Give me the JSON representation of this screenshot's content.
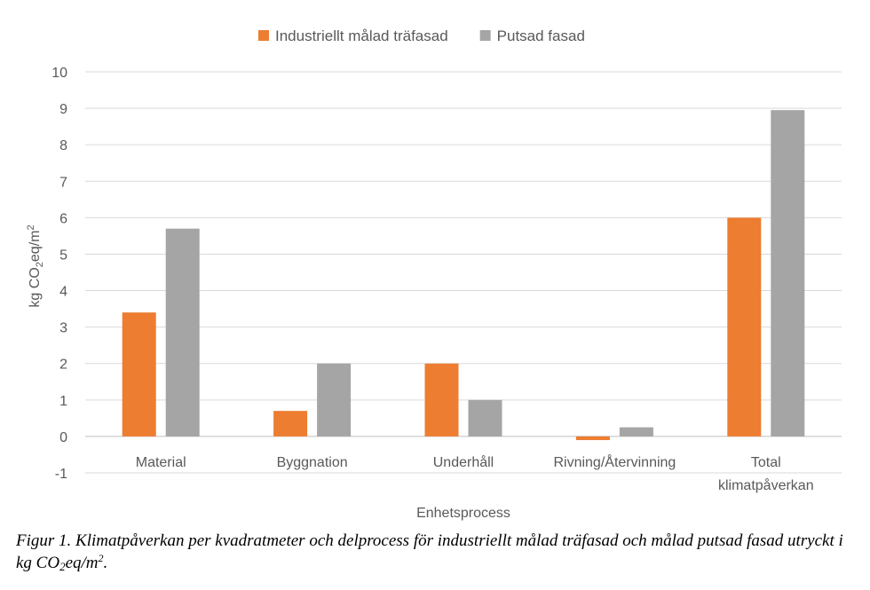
{
  "chart_data": {
    "type": "bar",
    "categories": [
      "Material",
      "Byggnation",
      "Underhåll",
      "Rivning/Återvinning",
      "Total klimatpåverkan"
    ],
    "category_lines": [
      [
        "Material"
      ],
      [
        "Byggnation"
      ],
      [
        "Underhåll"
      ],
      [
        "Rivning/Återvinning"
      ],
      [
        "Total",
        "klimatpåverkan"
      ]
    ],
    "series": [
      {
        "name": "Industriellt målad träfasad",
        "color": "#ED7D31",
        "values": [
          3.4,
          0.7,
          2.0,
          -0.1,
          6.0
        ]
      },
      {
        "name": "Putsad fasad",
        "color": "#A5A5A5",
        "values": [
          5.7,
          2.0,
          1.0,
          0.25,
          8.95
        ]
      }
    ],
    "title": "",
    "xlabel": "Enhetsprocess",
    "ylabel": "kg CO2eq/m2",
    "ylabel_parts": {
      "a": "kg CO",
      "b": "2",
      "c": "eq/m",
      "d": "2"
    },
    "ylim": [
      -1,
      10
    ],
    "yticks": [
      -1,
      0,
      1,
      2,
      3,
      4,
      5,
      6,
      7,
      8,
      9,
      10
    ],
    "grid": true,
    "legend_position": "top-center"
  },
  "caption": {
    "part1": "Figur 1. Klimatpåverkan per kvadratmeter och delprocess för industriellt målad träfasad och målad putsad fasad utryckt i kg CO",
    "sub": "2",
    "part2": "eq/m",
    "sup": "2",
    "part3": "."
  }
}
